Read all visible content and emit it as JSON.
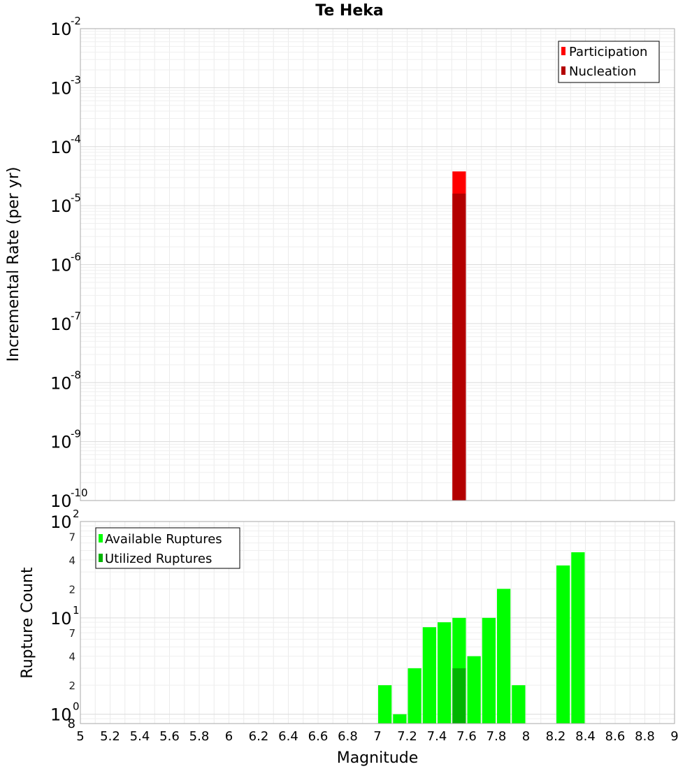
{
  "chart_data": [
    {
      "type": "bar",
      "title": "Te Heka",
      "xlabel": "",
      "ylabel": "Incremental Rate (per yr)",
      "yscale": "log",
      "xlim": [
        5,
        9
      ],
      "ylim": [
        1e-10,
        0.01
      ],
      "y_tick_exponents": [
        -10,
        -9,
        -8,
        -7,
        -6,
        -5,
        -4,
        -3,
        -2
      ],
      "legend": {
        "placement": "top-right",
        "entries": [
          "Participation",
          "Nucleation"
        ]
      },
      "series": [
        {
          "name": "Participation",
          "color": "#ff0000",
          "x": [
            7.55
          ],
          "values": [
            3.8e-05
          ]
        },
        {
          "name": "Nucleation",
          "color": "#b30000",
          "x": [
            7.55
          ],
          "values": [
            1.6e-05
          ]
        }
      ],
      "grid": true
    },
    {
      "type": "bar",
      "title": "",
      "xlabel": "Magnitude",
      "ylabel": "Rupture Count",
      "yscale": "log",
      "xlim": [
        5,
        9
      ],
      "ylim": [
        0.8,
        100
      ],
      "x_ticks": [
        "5",
        "5.2",
        "5.4",
        "5.6",
        "5.8",
        "6",
        "6.2",
        "6.4",
        "6.6",
        "6.8",
        "7",
        "7.2",
        "7.4",
        "7.6",
        "7.8",
        "8",
        "8.2",
        "8.4",
        "8.6",
        "8.8",
        "9"
      ],
      "y_major_ticks": [
        {
          "base": "10",
          "exp": "0",
          "value": 1
        },
        {
          "base": "10",
          "exp": "1",
          "value": 10
        },
        {
          "base": "10",
          "exp": "2",
          "value": 100
        }
      ],
      "y_minor_ticks": [
        {
          "label": "8",
          "value": 0.8
        },
        {
          "label": "2",
          "value": 2
        },
        {
          "label": "4",
          "value": 4
        },
        {
          "label": "7",
          "value": 7
        },
        {
          "label": "2",
          "value": 20
        },
        {
          "label": "4",
          "value": 40
        },
        {
          "label": "7",
          "value": 70
        }
      ],
      "legend": {
        "placement": "top-left",
        "entries": [
          "Available Ruptures",
          "Utilized Ruptures"
        ]
      },
      "series": [
        {
          "name": "Available Ruptures",
          "color": "#00ff00",
          "x": [
            7.05,
            7.15,
            7.25,
            7.35,
            7.45,
            7.55,
            7.65,
            7.75,
            7.85,
            7.95,
            8.25,
            8.35
          ],
          "values": [
            2,
            1,
            3,
            8,
            9,
            10,
            4,
            10,
            20,
            2,
            35,
            48
          ]
        },
        {
          "name": "Utilized Ruptures",
          "color": "#00b400",
          "x": [
            7.55
          ],
          "values": [
            3
          ]
        }
      ],
      "grid": true
    }
  ]
}
